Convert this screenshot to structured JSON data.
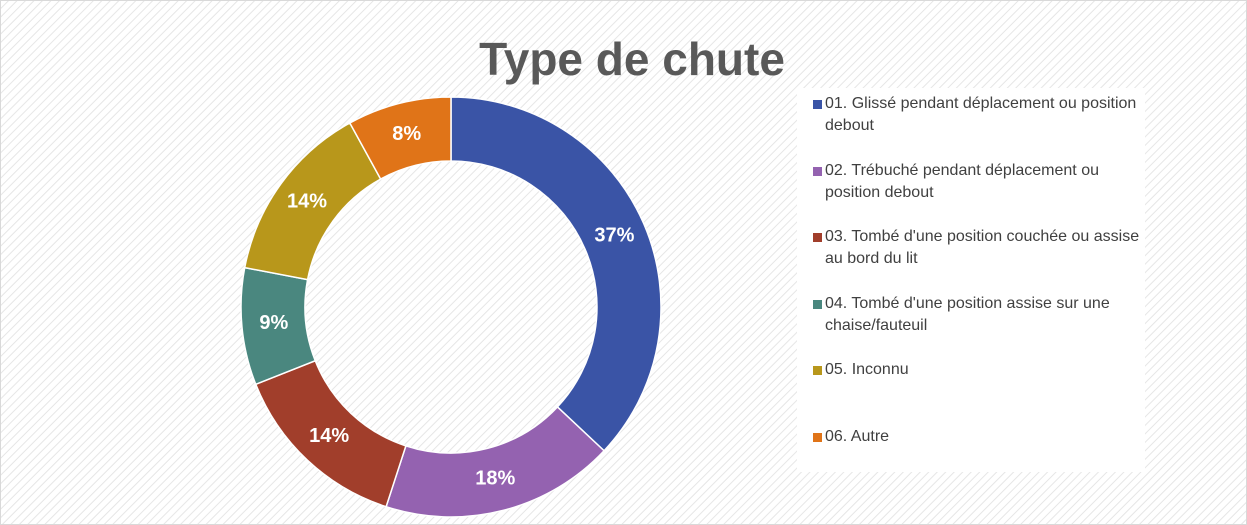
{
  "chart_data": {
    "type": "donut",
    "title": "Type de chute",
    "categories": [
      "01. Glissé pendant déplacement ou position debout",
      "02. Trébuché pendant déplacement ou position debout",
      "03. Tombé d'une position couchée ou assise au bord du lit",
      "04. Tombé d'une position assise sur une chaise/fauteuil",
      "05. Inconnu",
      "06. Autre"
    ],
    "values": [
      37,
      18,
      14,
      9,
      14,
      8
    ],
    "value_labels": [
      "37%",
      "18%",
      "14%",
      "9%",
      "14%",
      "8%"
    ],
    "colors": [
      "#3a54a6",
      "#9462b0",
      "#a13e2b",
      "#4a877f",
      "#b8971b",
      "#e07418"
    ],
    "legend": "right"
  }
}
